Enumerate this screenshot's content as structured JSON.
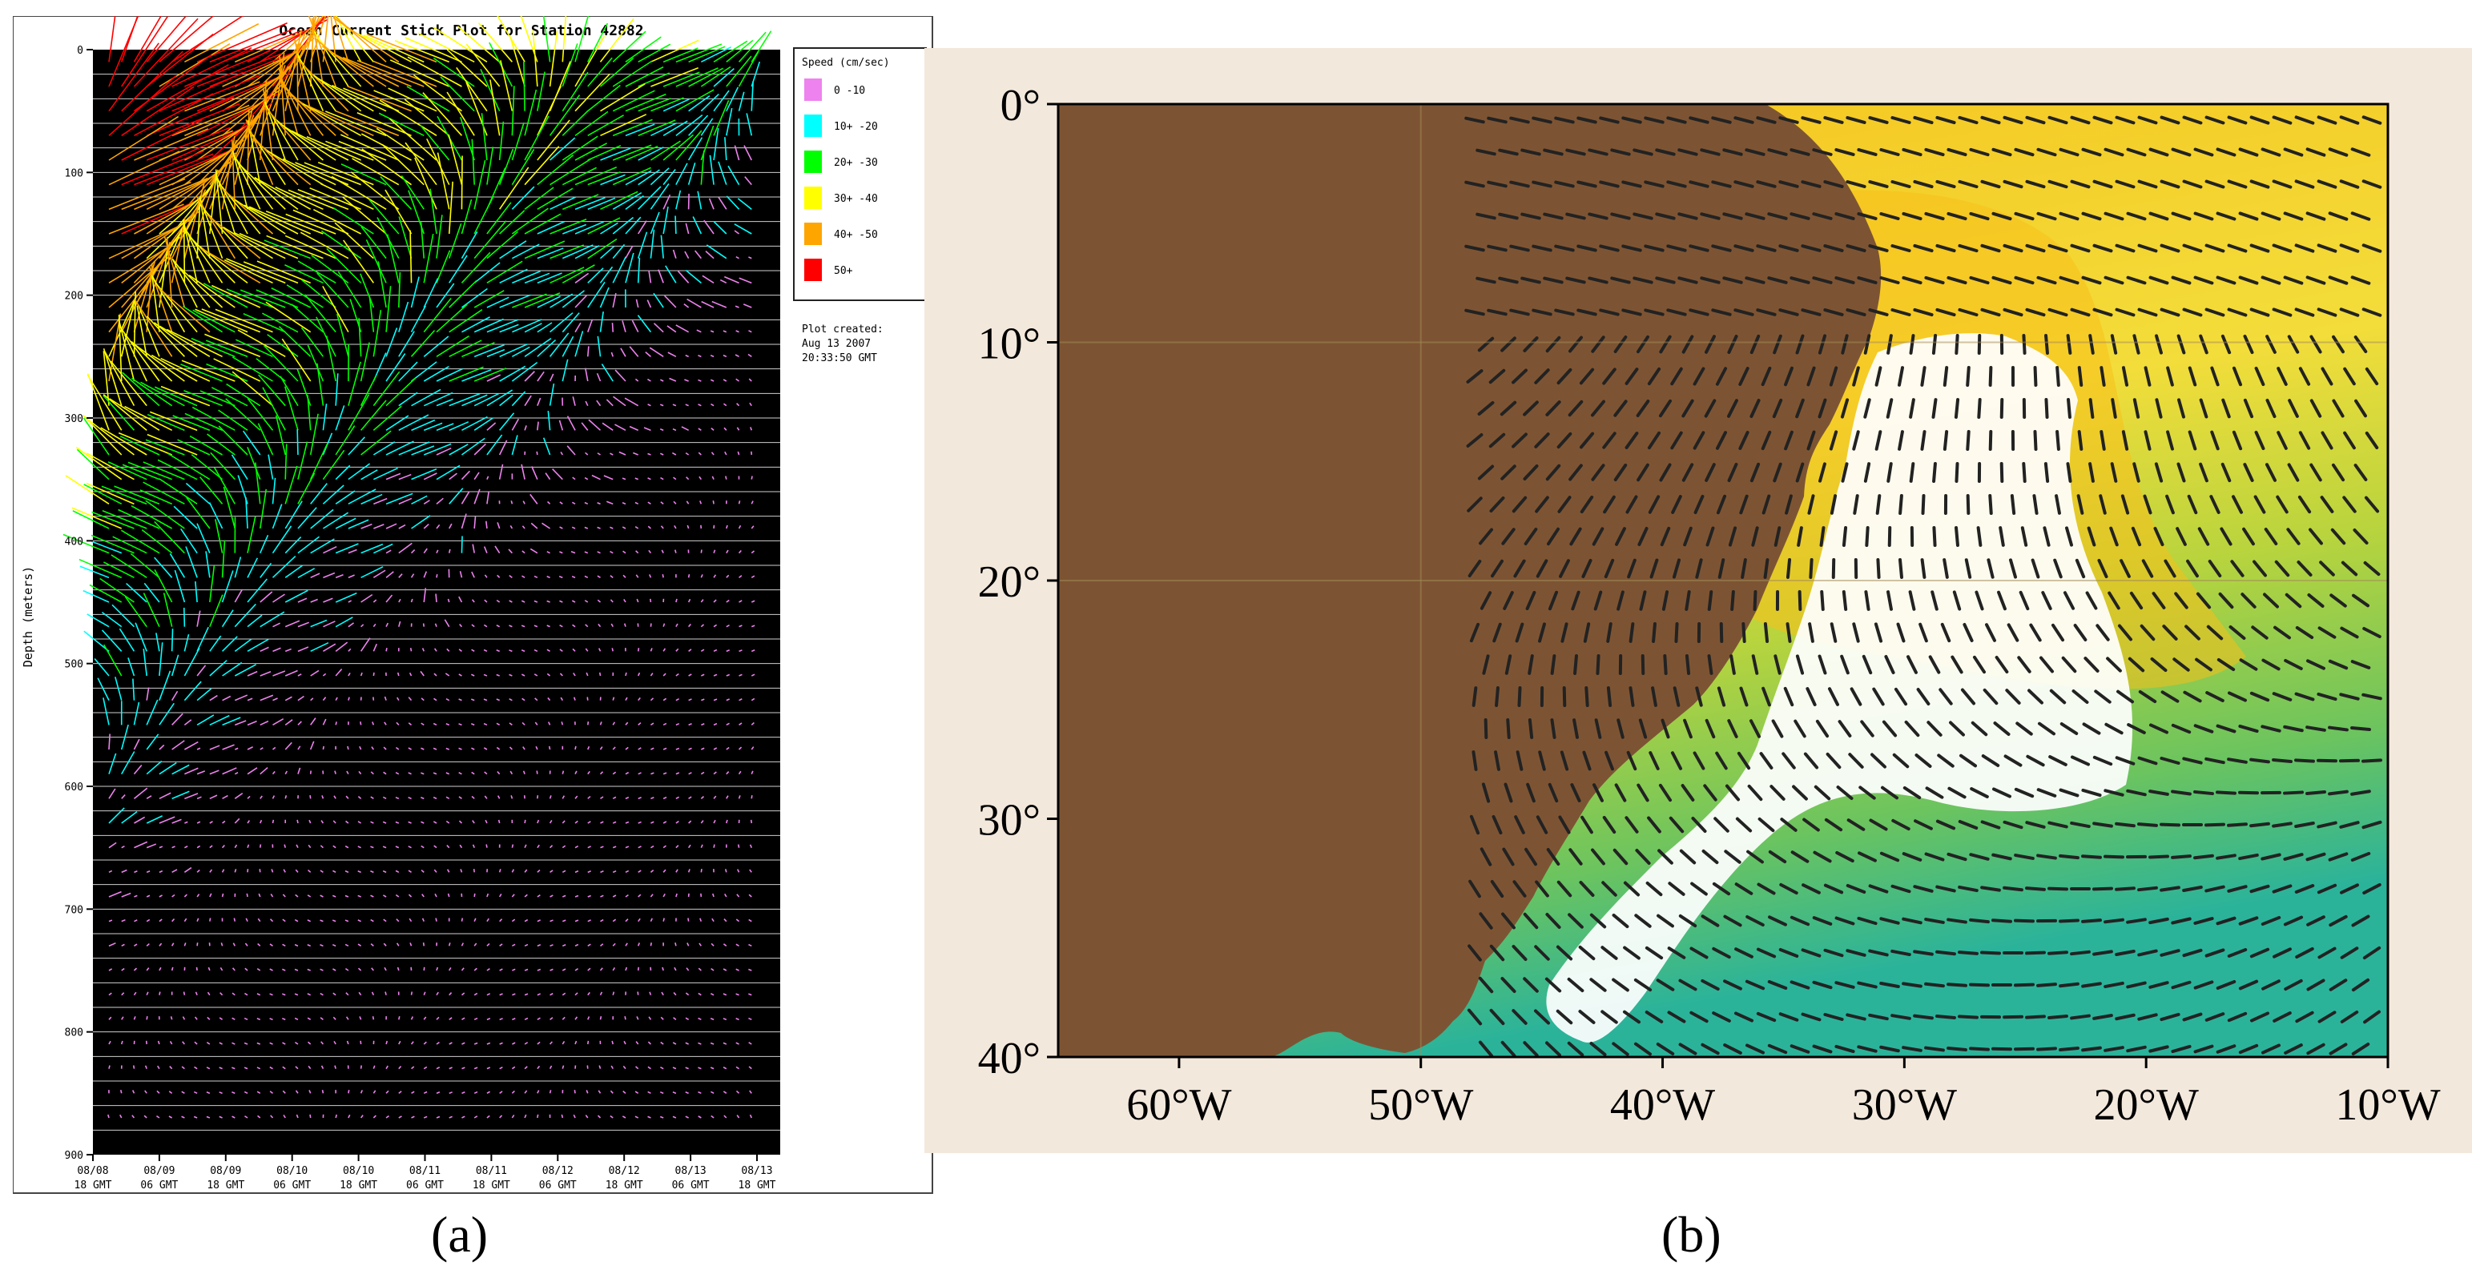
{
  "captions": {
    "a": "(a)",
    "b": "(b)"
  },
  "chart_data": [
    {
      "type": "stick-plot",
      "title": "Ocean Current Stick Plot for Station 42882",
      "ylabel": "Depth (meters)",
      "xlabel": "",
      "ylim": [
        900,
        0
      ],
      "y_ticks": [
        "0",
        "100",
        "200",
        "300",
        "400",
        "500",
        "600",
        "700",
        "800",
        "900"
      ],
      "x_ticks": [
        {
          "date": "08/08",
          "time": "18 GMT"
        },
        {
          "date": "08/09",
          "time": "06 GMT"
        },
        {
          "date": "08/09",
          "time": "18 GMT"
        },
        {
          "date": "08/10",
          "time": "06 GMT"
        },
        {
          "date": "08/10",
          "time": "18 GMT"
        },
        {
          "date": "08/11",
          "time": "06 GMT"
        },
        {
          "date": "08/11",
          "time": "18 GMT"
        },
        {
          "date": "08/12",
          "time": "06 GMT"
        },
        {
          "date": "08/12",
          "time": "18 GMT"
        },
        {
          "date": "08/13",
          "time": "06 GMT"
        },
        {
          "date": "08/13",
          "time": "18 GMT"
        }
      ],
      "legend_title": "Speed (cm/sec)",
      "legend_position": "right",
      "legend": [
        {
          "label": "0 -10",
          "color": "#ee82ee"
        },
        {
          "label": "10+ -20",
          "color": "#00ffff"
        },
        {
          "label": "20+ -30",
          "color": "#00ff00"
        },
        {
          "label": "30+ -40",
          "color": "#ffff00"
        },
        {
          "label": "40+ -50",
          "color": "#ffa500"
        },
        {
          "label": "50+",
          "color": "#ff0000"
        }
      ],
      "plot_created": [
        "Plot created:",
        "Aug 13 2007",
        "20:33:50 GMT"
      ],
      "background": "#000000"
    },
    {
      "type": "map",
      "x_ticks": [
        "60°W",
        "50°W",
        "40°W",
        "30°W",
        "20°W",
        "10°W"
      ],
      "y_ticks": [
        "0°",
        "10°",
        "20°",
        "30°",
        "40°"
      ],
      "lon_range": [
        -65,
        -10
      ],
      "lat_range": [
        -40,
        0
      ],
      "colors": {
        "land": "#7d5433",
        "ocean_warm": "#f6c21c",
        "ocean_cool": "#2bb39a",
        "current": "#ffffff",
        "arrows": "#222222",
        "frame_bg": "#f3e8dc"
      }
    }
  ]
}
